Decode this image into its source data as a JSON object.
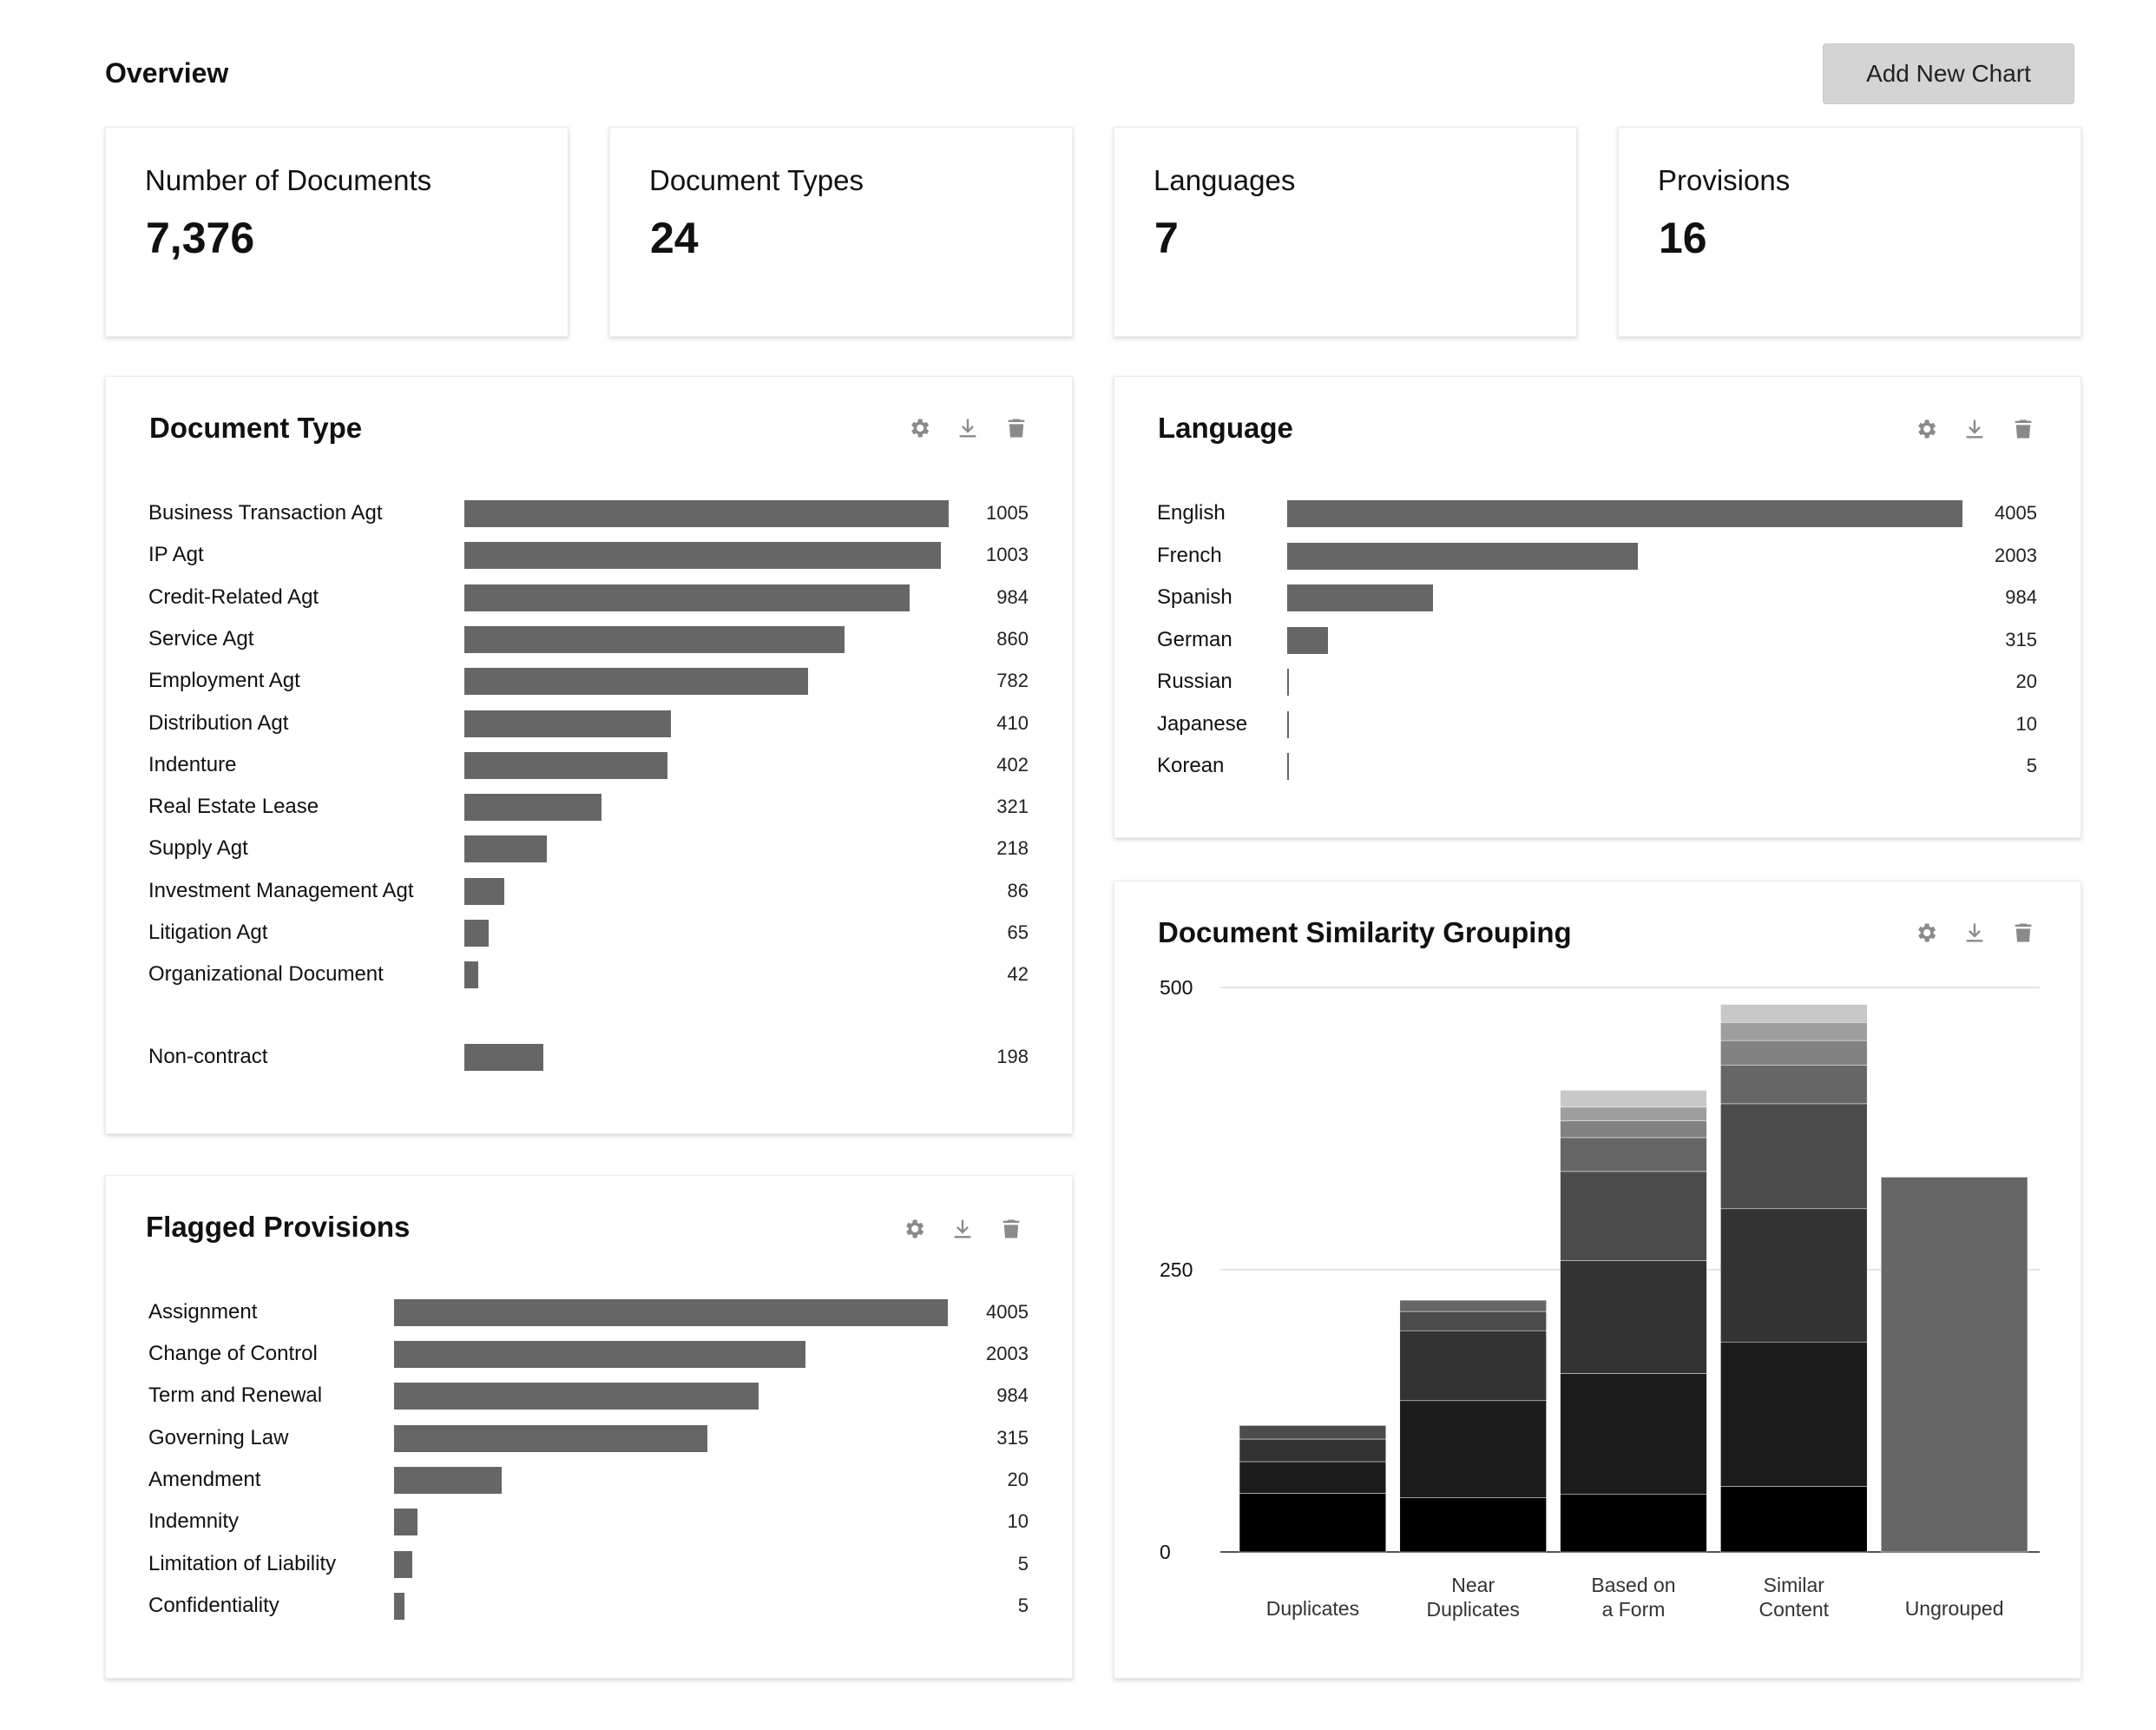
{
  "page": {
    "title": "Overview",
    "add_chart_label": "Add New Chart"
  },
  "stats": [
    {
      "label": "Number of Documents",
      "value": "7,376"
    },
    {
      "label": "Document Types",
      "value": "24"
    },
    {
      "label": "Languages",
      "value": "7"
    },
    {
      "label": "Provisions",
      "value": "16"
    }
  ],
  "icons": {
    "settings": "gear-icon",
    "download": "download-icon",
    "delete": "trash-icon"
  },
  "colors": {
    "bar": "#666666",
    "button": "#d4d4d4"
  },
  "document_type": {
    "title": "Document Type",
    "max": 1005,
    "rows": [
      {
        "label": "Business Transaction Agt",
        "value": 1005
      },
      {
        "label": "IP Agt",
        "value": 1003
      },
      {
        "label": "Credit-Related Agt",
        "value": 984
      },
      {
        "label": "Service Agt",
        "value": 860
      },
      {
        "label": "Employment Agt",
        "value": 782
      },
      {
        "label": "Distribution Agt",
        "value": 410
      },
      {
        "label": "Indenture",
        "value": 402
      },
      {
        "label": "Real Estate Lease",
        "value": 321
      },
      {
        "label": "Supply Agt",
        "value": 218
      },
      {
        "label": "Investment Management Agt",
        "value": 86
      },
      {
        "label": "Litigation Agt",
        "value": 65
      },
      {
        "label": "Organizational Document",
        "value": 42
      }
    ],
    "extra_row": {
      "label": "Non-contract",
      "value": 198
    }
  },
  "language": {
    "title": "Language",
    "max": 4005,
    "rows": [
      {
        "label": "English",
        "value": 4005
      },
      {
        "label": "French",
        "value": 2003
      },
      {
        "label": "Spanish",
        "value": 984
      },
      {
        "label": "German",
        "value": 315
      },
      {
        "label": "Russian",
        "value": 20
      },
      {
        "label": "Japanese",
        "value": 10
      },
      {
        "label": "Korean",
        "value": 5
      }
    ]
  },
  "flagged_provisions": {
    "title": "Flagged Provisions",
    "max": 4005,
    "rows": [
      {
        "label": "Assignment",
        "value": 4005
      },
      {
        "label": "Change of Control",
        "value": 2003
      },
      {
        "label": "Term and Renewal",
        "value": 984
      },
      {
        "label": "Governing Law",
        "value": 315
      },
      {
        "label": "Amendment",
        "value": 20
      },
      {
        "label": "Indemnity",
        "value": 10
      },
      {
        "label": "Limitation of Liability",
        "value": 5
      },
      {
        "label": "Confidentiality",
        "value": 5
      }
    ]
  },
  "chart_data": {
    "type": "bar",
    "stacked": true,
    "title": "Document Similarity Grouping",
    "categories": [
      "Duplicates",
      "Near\nDuplicates",
      "Based on\na Form",
      "Similar\nContent",
      "Ungrouped"
    ],
    "ylim": [
      0,
      500
    ],
    "yticks": [
      0,
      250,
      500
    ],
    "grid": true,
    "segment_colors": [
      "#000000",
      "#1b1b1b",
      "#333333",
      "#4b4b4b",
      "#666666",
      "#828282",
      "#9e9e9e",
      "#c8c8c8"
    ],
    "stacks": [
      [
        52,
        28,
        20,
        12
      ],
      [
        48,
        86,
        62,
        17,
        10
      ],
      [
        51,
        107,
        100,
        79,
        30,
        15,
        12,
        15
      ],
      [
        58,
        128,
        118,
        93,
        34,
        22,
        16,
        16
      ],
      [
        332
      ]
    ],
    "ungrouped_color": "#666666"
  }
}
